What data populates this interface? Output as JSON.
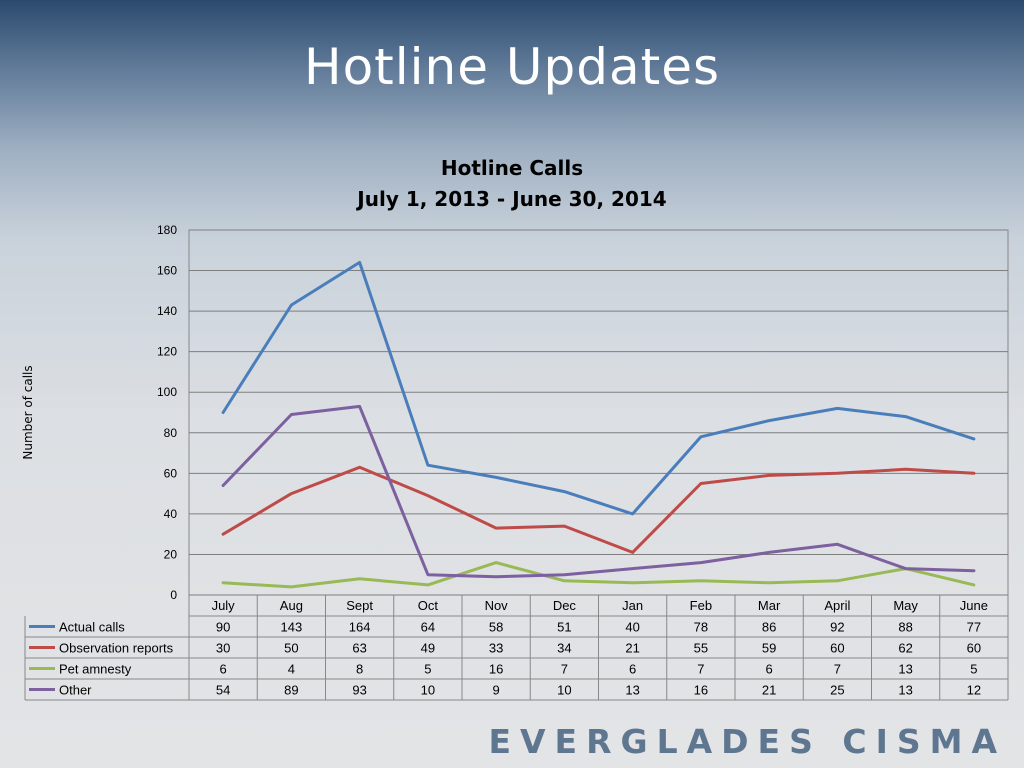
{
  "slide": {
    "title": "Hotline Updates",
    "footer": "EVERGLADES CISMA"
  },
  "chart_data": {
    "type": "line",
    "title": "Hotline Calls",
    "subtitle": "July 1, 2013 - June 30, 2014",
    "xlabel": "",
    "ylabel": "Number of calls",
    "ylim": [
      0,
      180
    ],
    "yticks": [
      0,
      20,
      40,
      60,
      80,
      100,
      120,
      140,
      160,
      180
    ],
    "grid": true,
    "legend": "data-table-below",
    "categories": [
      "July",
      "Aug",
      "Sept",
      "Oct",
      "Nov",
      "Dec",
      "Jan",
      "Feb",
      "Mar",
      "April",
      "May",
      "June"
    ],
    "series": [
      {
        "name": "Actual calls",
        "color": "#4a7ebb",
        "values": [
          90,
          143,
          164,
          64,
          58,
          51,
          40,
          78,
          86,
          92,
          88,
          77
        ]
      },
      {
        "name": "Observation reports",
        "color": "#be4b48",
        "values": [
          30,
          50,
          63,
          49,
          33,
          34,
          21,
          55,
          59,
          60,
          62,
          60
        ]
      },
      {
        "name": "Pet amnesty",
        "color": "#98b954",
        "values": [
          6,
          4,
          8,
          5,
          16,
          7,
          6,
          7,
          6,
          7,
          13,
          5
        ]
      },
      {
        "name": "Other",
        "color": "#7d60a0",
        "values": [
          54,
          89,
          93,
          10,
          9,
          10,
          13,
          16,
          21,
          25,
          13,
          12
        ]
      }
    ]
  }
}
